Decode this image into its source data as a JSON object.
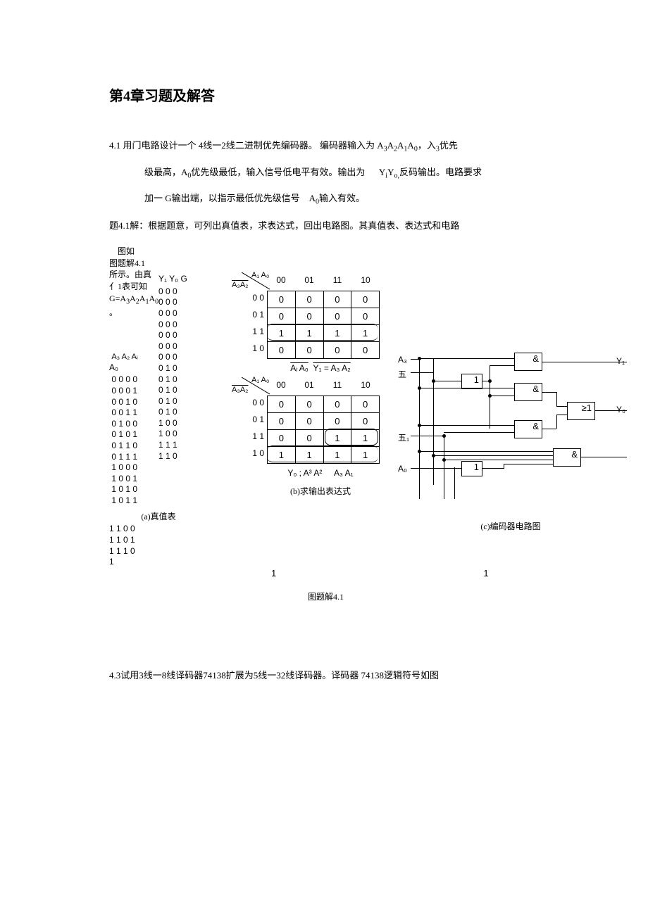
{
  "title": "第4章习题及解答",
  "para1_a": "4.1 用门电路设计一个 4线一2线二进制优先编码器。 编码器输入为 A",
  "para1_a2": "A",
  "para1_a3": "A",
  "para1_a4": "A",
  "para1_a5": "，入",
  "para1_a6": "优先",
  "sub3": "3",
  "sub2": "2",
  "sub1": "1",
  "sub0": "0",
  "para1_b": "级最高，A",
  "para1_b2": "优先级最低，输入信号低电平有效。输出为",
  "para1_b3": "Y",
  "para1_b4": "Y",
  "para1_b5": "反码输出。电路要求",
  "subi": "i",
  "subo": "o,",
  "para1_c": "加一 G输出端，以指示最低优先级信号",
  "para1_c2": "A",
  "para1_c3": "输入有效。",
  "para2": "题4.1解：根据题意，可列出真值表，求表达式，回出电路图。其真值表、表达式和电路",
  "colA": {
    "text1": "图如",
    "text2": "图题解4.1",
    "text3": "所示。由真",
    "text4": "亻1表可知",
    "text5a": "G=A",
    "text5b": "A",
    "text5c": "A",
    "text5d": "A",
    "text6": "。",
    "hdr_in": "A₃ A₂ Aᵢ A₀",
    "hdr_out": "Y₁ Y₀ G",
    "rows_in": [
      "0 0 0 0",
      "0 0 0 1",
      "0 0 1 0",
      "0 0 1 1",
      "0 1 0 0",
      "0 1 0 1",
      "0 1 1 0",
      "0 1 1 1",
      "1 0 0 0",
      "1 0 0 1",
      "1 0 1 0",
      "1 0 1 1"
    ],
    "rows_out": [
      "0 0 0",
      "0 0 0",
      "0 0 0",
      "0 0 0",
      "0 0 0",
      "0 0 0",
      "0 0 0",
      "0 1 0",
      "0 1 0",
      "0 1 0",
      "0 1 0",
      "0 1 0",
      "1  0 0",
      "1 0 0",
      "1  1  1",
      "1  1  0"
    ],
    "tail": [
      "1 1 0 0",
      "1 1 0 1",
      "1 1 1 0",
      "1"
    ],
    "cap": "(a)真值表"
  },
  "kmap": {
    "top_var": "A₁ A₀",
    "side_var_a": "A₃A₂",
    "side_var_b": "Aᵢ A₀",
    "cols": [
      "00",
      "01",
      "11",
      "10"
    ],
    "rows": [
      "0 0",
      "0 1",
      "1 1",
      "1 0"
    ],
    "grid1": [
      [
        "0",
        "0",
        "0",
        "0"
      ],
      [
        "0",
        "0",
        "0",
        "0"
      ],
      [
        "1",
        "1",
        "1",
        "1"
      ],
      [
        "0",
        "0",
        "0",
        "0"
      ]
    ],
    "expr1": "Y₁  = A₃ A₂",
    "grid2": [
      [
        "0",
        "0",
        "0",
        "0"
      ],
      [
        "0",
        "0",
        "0",
        "0"
      ],
      [
        "0",
        "0",
        "1",
        "1"
      ],
      [
        "1",
        "1",
        "1",
        "1"
      ]
    ],
    "expr2a": "Y₀ ; A³ A²",
    "expr2b": "A₃ A₁",
    "cap": "(b)求输出表达式"
  },
  "circuit": {
    "in_labels": [
      "A₃",
      "五",
      "五₁",
      "A₀"
    ],
    "out_labels": [
      "Y₁",
      "Y₀"
    ],
    "gate_and": "&",
    "gate_not": "1",
    "gate_or": "≥1",
    "cap": "(c)编码器电路图"
  },
  "fig_caption": "图题解4.1",
  "bottom_ones": [
    "1",
    "1",
    "1"
  ],
  "para3": "4.3试用3线一8线译码器74138扩展为5线一32线译码器。译码器 74138逻辑符号如图"
}
